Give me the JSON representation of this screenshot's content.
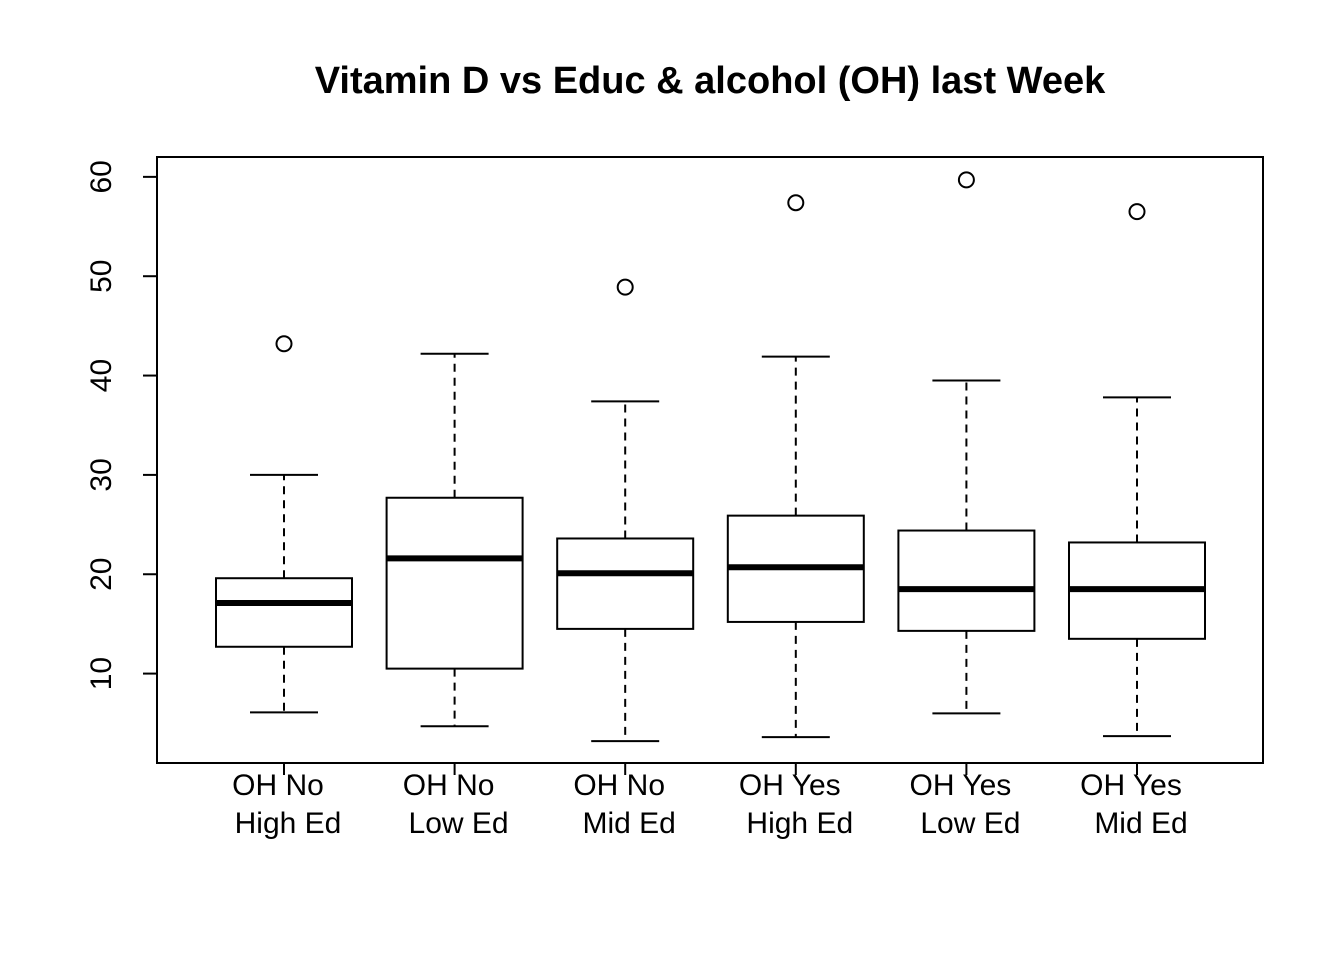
{
  "chart_data": {
    "type": "boxplot",
    "title": "Vitamin D vs Educ & alcohol (OH) last Week",
    "xlabel": "",
    "ylabel": "",
    "ylim": [
      1,
      62
    ],
    "yticks": [
      10,
      20,
      30,
      40,
      50,
      60
    ],
    "ytick_labels": [
      "10",
      "20",
      "30",
      "40",
      "50",
      "60"
    ],
    "grid": false,
    "categories": [
      {
        "line1": "OH No",
        "line2": "High  Ed"
      },
      {
        "line1": "OH No",
        "line2": "Low  Ed"
      },
      {
        "line1": "OH No",
        "line2": "Mid  Ed"
      },
      {
        "line1": "OH Yes",
        "line2": "High  Ed"
      },
      {
        "line1": "OH Yes",
        "line2": "Low  Ed"
      },
      {
        "line1": "OH Yes",
        "line2": "Mid  Ed"
      }
    ],
    "boxes": [
      {
        "whisker_low": 6.1,
        "q1": 12.7,
        "median": 17.1,
        "q3": 19.6,
        "whisker_high": 30.0,
        "outliers": [
          43.2
        ]
      },
      {
        "whisker_low": 4.7,
        "q1": 10.5,
        "median": 21.6,
        "q3": 27.7,
        "whisker_high": 42.2,
        "outliers": []
      },
      {
        "whisker_low": 3.2,
        "q1": 14.5,
        "median": 20.1,
        "q3": 23.6,
        "whisker_high": 37.4,
        "outliers": [
          48.9
        ]
      },
      {
        "whisker_low": 3.6,
        "q1": 15.2,
        "median": 20.7,
        "q3": 25.9,
        "whisker_high": 41.9,
        "outliers": [
          57.4
        ]
      },
      {
        "whisker_low": 6.0,
        "q1": 14.3,
        "median": 18.5,
        "q3": 24.4,
        "whisker_high": 39.5,
        "outliers": [
          59.7
        ]
      },
      {
        "whisker_low": 3.7,
        "q1": 13.5,
        "median": 18.5,
        "q3": 23.2,
        "whisker_high": 37.8,
        "outliers": [
          56.5
        ]
      }
    ],
    "colors": {
      "line": "#000000",
      "box_fill": "#ffffff",
      "background": "#ffffff"
    }
  }
}
